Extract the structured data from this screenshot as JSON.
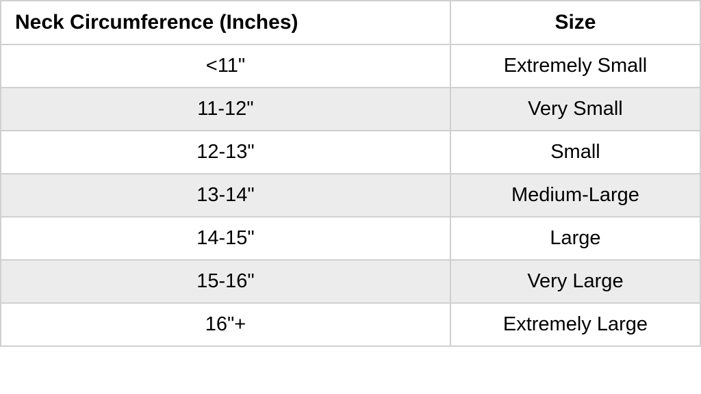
{
  "table": {
    "type": "table",
    "columns": [
      {
        "label": "Neck Circumference (Inches)",
        "align": "center",
        "width_pct": 50
      },
      {
        "label": "Size",
        "align": "center",
        "width_pct": 50
      }
    ],
    "rows": [
      [
        "<11\"",
        "Extremely Small"
      ],
      [
        "11-12\"",
        "Very Small"
      ],
      [
        "12-13\"",
        "Small"
      ],
      [
        "13-14\"",
        "Medium-Large"
      ],
      [
        "14-15\"",
        "Large"
      ],
      [
        "15-16\"",
        "Very Large"
      ],
      [
        "16\"+",
        "Extremely Large"
      ]
    ],
    "header_bg": "#ffffff",
    "row_bg": "#ffffff",
    "alt_row_bg": "#ececec",
    "border_color": "#d0d0d0",
    "text_color": "#000000",
    "header_fontsize": 30,
    "cell_fontsize": 29,
    "header_fontweight": "bold",
    "cell_fontweight": "normal"
  }
}
